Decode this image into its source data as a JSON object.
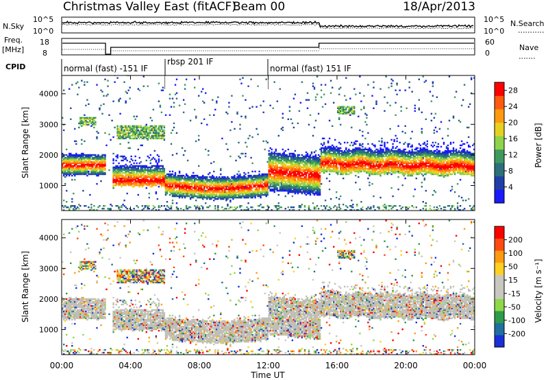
{
  "header": {
    "title": "Christmas Valley East (fitACF)",
    "beam": "Beam 00",
    "date": "18/Apr/2013"
  },
  "panels": {
    "nsky_label": "N.Sky",
    "nsky_ticks": [
      "10^5",
      "10^0"
    ],
    "nsearch_label": "N.Search",
    "nsearch_ticks": [
      "10^5",
      "10^0"
    ],
    "freq_label": "Freq.",
    "freq_unit": "[MHz]",
    "freq_ticks": [
      "18",
      "8"
    ],
    "nave_label": "Nave",
    "nave_ticks": [
      "60",
      "0"
    ],
    "cpid_label": "CPID",
    "cpid_segments": [
      "normal (fast) -151 IF",
      "rbsp 201 IF",
      "normal (fast) 151 IF"
    ]
  },
  "colors": {
    "power_scale": [
      "#1a1aff",
      "#1f3fa8",
      "#2d6f7a",
      "#3f9a5f",
      "#8ed34a",
      "#e8d020",
      "#ff9a10",
      "#ff5a10",
      "#ff0000"
    ],
    "velocity_scale": [
      "#1a2fd8",
      "#1f6fa0",
      "#2e9a4a",
      "#8ed84a",
      "#c8c8c0",
      "#c8c8c0",
      "#ffd020",
      "#ff9a10",
      "#ff4a10",
      "#ff0000"
    ],
    "ground_scatter": "#c0bfb7"
  },
  "chart_data": [
    {
      "type": "heatmap",
      "title": "Power",
      "xlabel": "Time UT",
      "ylabel": "Slant Range [km]",
      "xlim": [
        "00:00",
        "24:00"
      ],
      "ylim": [
        180,
        4600
      ],
      "x_ticks": [
        "00:00",
        "04:00",
        "08:00",
        "12:00",
        "16:00",
        "20:00",
        "00:00"
      ],
      "y_ticks": [
        "1000",
        "2000",
        "3000",
        "4000"
      ],
      "colorbar_label": "Power [dB]",
      "colorbar_ticks": [
        "4",
        "8",
        "12",
        "16",
        "20",
        "24",
        "28"
      ],
      "colorbar_range": [
        0,
        30
      ],
      "backscatter_features": [
        {
          "t_start": 0.0,
          "t_end": 2.5,
          "range_low": 1300,
          "range_high": 2050,
          "peak_range": 1650
        },
        {
          "t_start": 2.9,
          "t_end": 6.0,
          "range_low": 950,
          "range_high": 2000,
          "peak_range": 1150
        },
        {
          "t_start": 6.0,
          "t_end": 12.0,
          "range_low": 650,
          "range_high": 1500,
          "peak_range": 1000
        },
        {
          "t_start": 12.0,
          "t_end": 15.0,
          "range_low": 800,
          "range_high": 2200,
          "peak_range": 1450
        },
        {
          "t_start": 15.0,
          "t_end": 24.0,
          "range_low": 1400,
          "range_high": 2500,
          "peak_range": 1700
        },
        {
          "t_start": 3.2,
          "t_end": 6.0,
          "range_low": 2500,
          "range_high": 2950,
          "peak_range": 2700
        },
        {
          "t_start": 1.0,
          "t_end": 2.0,
          "range_low": 2950,
          "range_high": 3200,
          "peak_range": 3100
        },
        {
          "t_start": 16.0,
          "t_end": 17.0,
          "range_low": 3300,
          "range_high": 3600,
          "peak_range": 3450
        }
      ]
    },
    {
      "type": "heatmap",
      "title": "Velocity",
      "xlabel": "Time UT",
      "ylabel": "Slant Range [km]",
      "xlim": [
        "00:00",
        "24:00"
      ],
      "ylim": [
        180,
        4600
      ],
      "x_ticks": [
        "00:00",
        "04:00",
        "08:00",
        "12:00",
        "16:00",
        "20:00",
        "00:00"
      ],
      "y_ticks": [
        "1000",
        "2000",
        "3000",
        "4000"
      ],
      "colorbar_label": "Velocity [m s⁻¹]",
      "colorbar_ticks": [
        "200",
        "100",
        "50",
        "15",
        "-15",
        "-50",
        "-100",
        "-200"
      ],
      "colorbar_range": [
        -250,
        250
      ],
      "ground_scatter": true
    }
  ]
}
